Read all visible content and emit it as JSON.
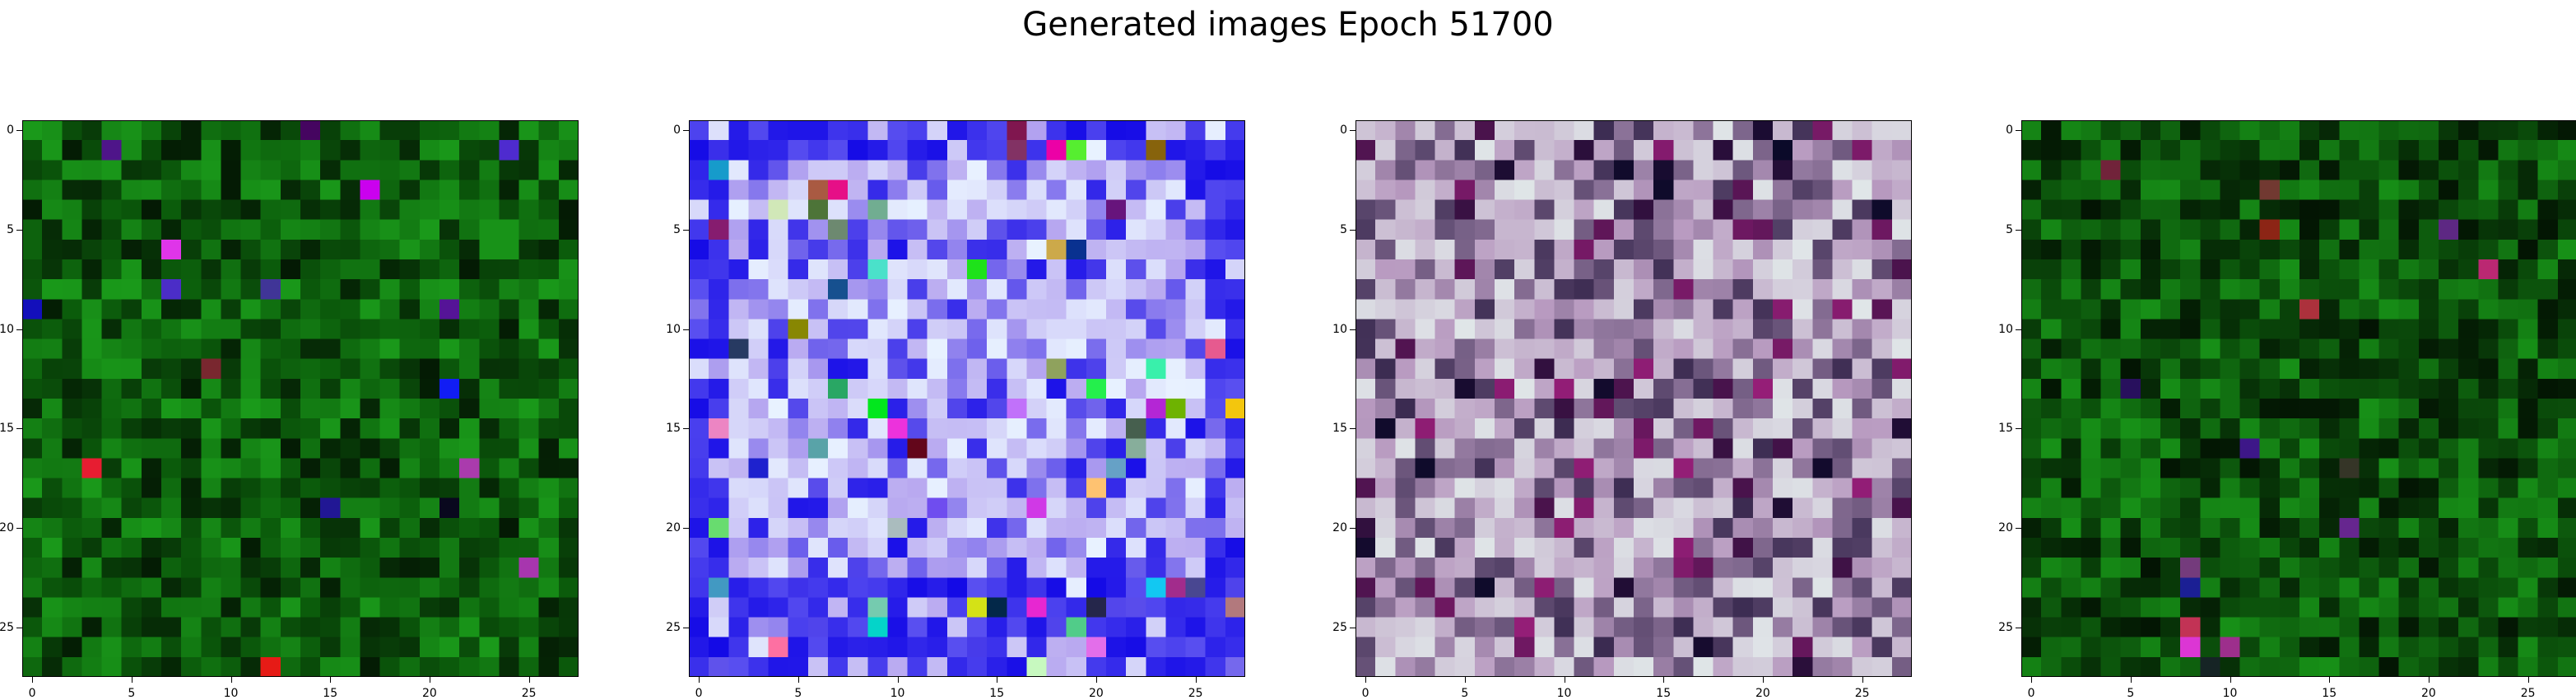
{
  "title": "Generated images Epoch 51700",
  "chart_data": [
    {
      "type": "heatmap",
      "grid": [
        28,
        28
      ],
      "description": "28x28 RGB noise image, predominantly dark green",
      "xticks": [
        0,
        5,
        10,
        15,
        20,
        25
      ],
      "yticks": [
        0,
        5,
        10,
        15,
        20,
        25
      ],
      "palette": {
        "base": "#0b5a0b",
        "dark": "#041a04",
        "bright": "#1a9a1a"
      }
    },
    {
      "type": "heatmap",
      "grid": [
        28,
        28
      ],
      "description": "28x28 RGB noise image, pastel lavender/cyan center with deep blue border",
      "xticks": [
        0,
        5,
        10,
        15,
        20,
        25
      ],
      "yticks": [
        0,
        5,
        10,
        15,
        20,
        25
      ],
      "palette": {
        "base": "#b8a8f0",
        "dark": "#1a10e8",
        "bright": "#e8f2ff"
      }
    },
    {
      "type": "heatmap",
      "grid": [
        28,
        28
      ],
      "description": "28x28 RGB noise image, muted pastel pink/grey/teal noise",
      "xticks": [
        0,
        5,
        10,
        15,
        20,
        25
      ],
      "yticks": [
        0,
        5,
        10,
        15,
        20,
        25
      ],
      "palette": {
        "base": "#b89ac0",
        "dark": "#3a2a50",
        "bright": "#e0e6e8"
      }
    },
    {
      "type": "heatmap",
      "grid": [
        28,
        28
      ],
      "description": "28x28 RGB noise image, predominantly dark green",
      "xticks": [
        0,
        5,
        10,
        15,
        20,
        25
      ],
      "yticks": [
        0,
        5,
        10,
        15,
        20,
        25
      ],
      "palette": {
        "base": "#0a4a0a",
        "dark": "#031403",
        "bright": "#179017"
      }
    }
  ]
}
